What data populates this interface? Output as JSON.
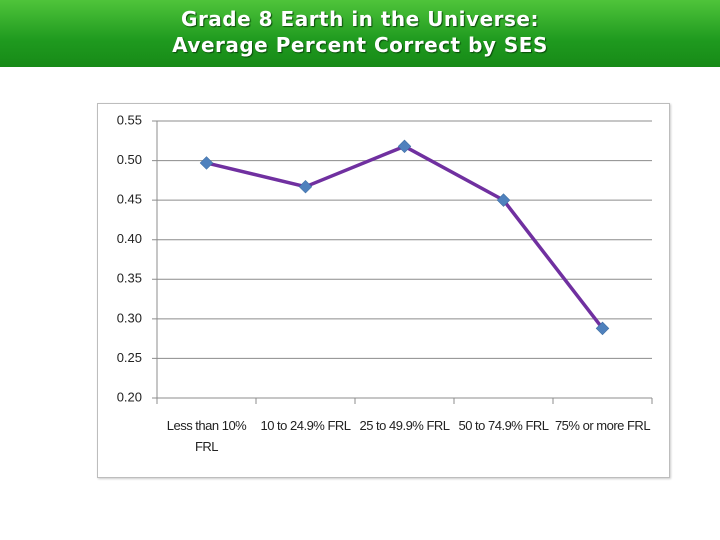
{
  "chart_data": {
    "type": "line",
    "title": "Grade 8 Earth in the Universe:",
    "subtitle": "Average Percent Correct by SES",
    "categories": [
      "Less than 10% FRL",
      "10 to 24.9% FRL",
      "25 to 49.9% FRL",
      "50 to 74.9% FRL",
      "75% or more FRL"
    ],
    "series": [
      {
        "color": "#7030a0",
        "marker_color": "#4f81bd",
        "values": [
          0.497,
          0.467,
          0.518,
          0.45,
          0.288
        ]
      }
    ],
    "ylim": [
      0.2,
      0.55
    ],
    "yticks": [
      {
        "value": 0.2,
        "label": "0.20"
      },
      0.25,
      {
        "value": 0.3,
        "label": "0.30"
      },
      0.35,
      {
        "value": 0.4,
        "label": "0.40"
      },
      0.45,
      {
        "value": 0.5,
        "label": "0.50"
      },
      0.55
    ],
    "grid": true
  }
}
